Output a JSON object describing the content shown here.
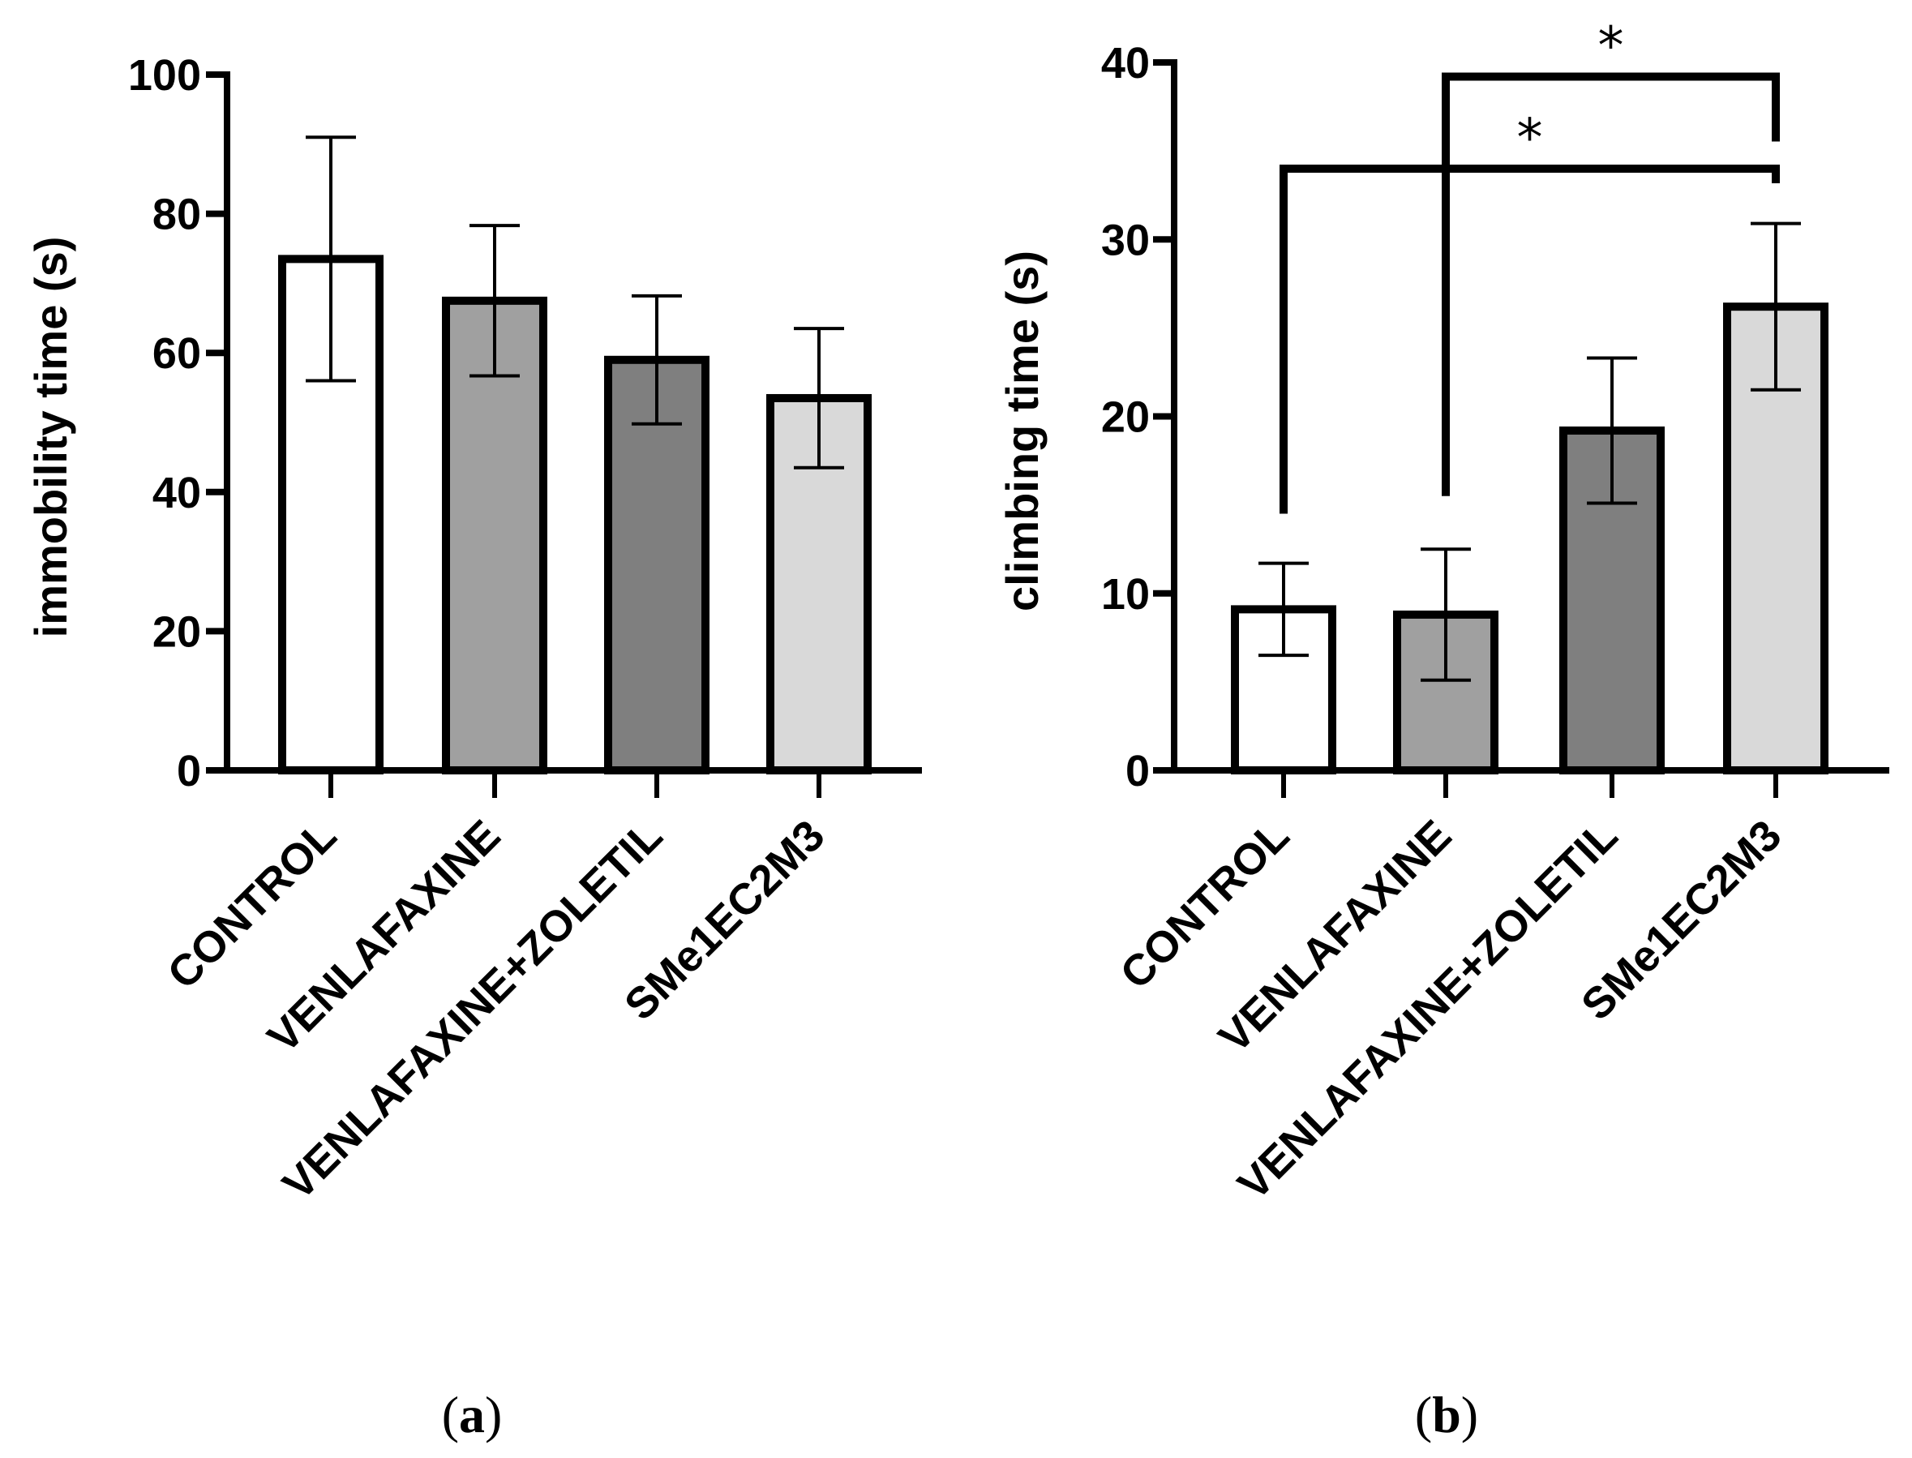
{
  "chart_data": [
    {
      "type": "bar",
      "panel": "a",
      "panel_label": {
        "open": "(",
        "letter": "a",
        "close": ")"
      },
      "title": "",
      "xlabel": "",
      "ylabel": "immobility time (s)",
      "ylim": [
        0,
        100
      ],
      "yticks": [
        0,
        20,
        40,
        60,
        80,
        100
      ],
      "categories": [
        "CONTROL",
        "VENLAFAXINE",
        "VENLAFAXINE+ZOLETIL",
        "SMe1EC2M3"
      ],
      "values": [
        73.5,
        67.5,
        59,
        53.5
      ],
      "errors": [
        17.5,
        10.8,
        9.2,
        10
      ],
      "fill_colors": [
        "#ffffff",
        "#a0a0a0",
        "#7f7f7f",
        "#d9d9d9"
      ],
      "significance": []
    },
    {
      "type": "bar",
      "panel": "b",
      "panel_label": {
        "open": "(",
        "letter": "b",
        "close": ")"
      },
      "title": "",
      "xlabel": "",
      "ylabel": "climbing time (s)",
      "ylim": [
        0,
        40
      ],
      "yticks": [
        0,
        10,
        20,
        30,
        40
      ],
      "categories": [
        "CONTROL",
        "VENLAFAXINE",
        "VENLAFAXINE+ZOLETIL",
        "SMe1EC2M3"
      ],
      "values": [
        9.1,
        8.8,
        19.2,
        26.2
      ],
      "errors": [
        2.6,
        3.7,
        4.1,
        4.7
      ],
      "fill_colors": [
        "#ffffff",
        "#a0a0a0",
        "#7f7f7f",
        "#d9d9d9"
      ],
      "significance": [
        {
          "from": 1,
          "to": 3,
          "level": 39.2,
          "label": "*"
        },
        {
          "from": 0,
          "to": 3,
          "level": 34.0,
          "label": "*"
        }
      ]
    }
  ]
}
